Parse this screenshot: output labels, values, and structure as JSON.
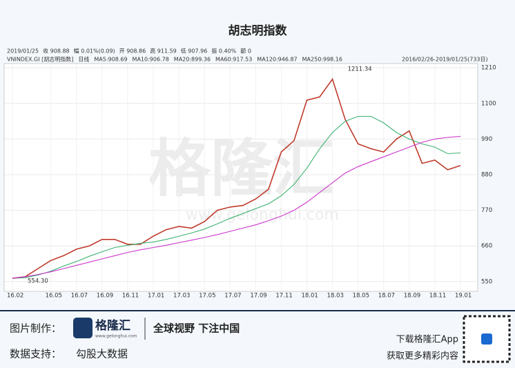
{
  "chart_data": {
    "type": "line",
    "title": "胡志明指数",
    "info": [
      "2019/01/25",
      "收 908.88",
      "幅 0.01%(0.09)",
      "开 908.86",
      "高 911.59",
      "低 907.96",
      "振 0.40%",
      "额 0"
    ],
    "legend": [
      "VNINDEX.GI [胡志明指数]",
      "日线",
      "MA5:908.69",
      "MA10:906.78",
      "MA20:899.36",
      "MA60:917.53",
      "MA120:946.87",
      "MA250:998.16"
    ],
    "range_label": "2016/02/26-2019/01/25(733日)",
    "categories": [
      "16.02",
      null,
      null,
      "16.05",
      null,
      "16.07",
      null,
      "16.09",
      null,
      "16.11",
      null,
      "17.01",
      null,
      "17.03",
      null,
      "17.05",
      null,
      "17.07",
      null,
      "17.09",
      null,
      "17.11",
      null,
      "18.01",
      null,
      "18.03",
      null,
      "18.05",
      null,
      "18.07",
      null,
      "18.09",
      null,
      "18.11",
      null,
      "19.01"
    ],
    "series": [
      {
        "name": "VNINDEX",
        "color": "#c0392b",
        "values": [
          560,
          565,
          590,
          615,
          630,
          650,
          660,
          680,
          680,
          665,
          665,
          690,
          710,
          720,
          715,
          735,
          770,
          780,
          785,
          805,
          835,
          950,
          985,
          1110,
          1120,
          1175,
          1050,
          975,
          960,
          950,
          990,
          1015,
          915,
          925,
          895,
          908
        ]
      },
      {
        "name": "MA120",
        "color": "#3cb371",
        "values": [
          560,
          562,
          570,
          582,
          598,
          612,
          628,
          642,
          655,
          662,
          668,
          672,
          680,
          690,
          700,
          712,
          728,
          745,
          760,
          775,
          790,
          815,
          850,
          900,
          960,
          1010,
          1045,
          1060,
          1060,
          1040,
          1010,
          990,
          975,
          965,
          945,
          947
        ]
      },
      {
        "name": "MA250",
        "color": "#cc33cc",
        "values": [
          560,
          565,
          572,
          580,
          590,
          600,
          610,
          620,
          630,
          640,
          648,
          655,
          662,
          670,
          678,
          686,
          695,
          705,
          715,
          725,
          738,
          752,
          770,
          795,
          825,
          855,
          885,
          905,
          920,
          935,
          950,
          965,
          980,
          990,
          995,
          998
        ]
      }
    ],
    "annotations": [
      "1211.34",
      "554.30"
    ],
    "ylim": [
      524,
      1221
    ],
    "yticks": [
      550,
      660,
      770,
      880,
      990,
      1100,
      1210
    ],
    "grid": true
  },
  "watermark": [
    "格隆汇",
    "www.gelonghui.com"
  ],
  "footer": {
    "made_by": "图片制作：",
    "logo": "格隆汇",
    "logo_url": "www.gelonghui.com",
    "slogan": "全球视野 下注中国",
    "data_by": "数据支持：",
    "data_source": "勾股大数据",
    "app": "下载格隆汇App",
    "more": "获取更多精彩内容"
  }
}
